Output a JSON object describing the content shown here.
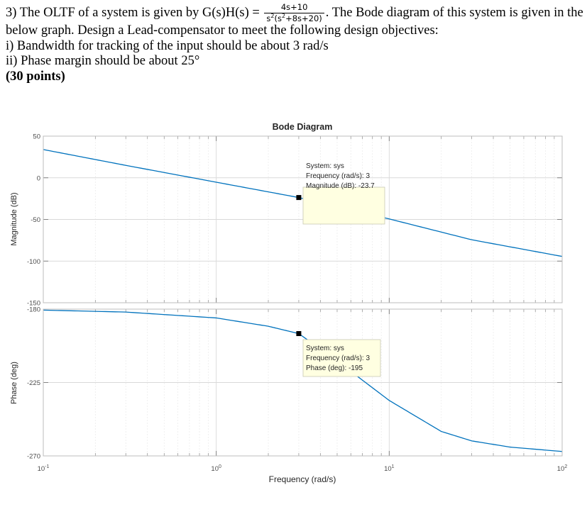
{
  "problem": {
    "lead": "3) The OLTF of a system is given by G(s)H(s) =",
    "tf_num": "4s+10",
    "tf_den_s": "s",
    "tf_den_exp": "2",
    "tf_den_open": "(s",
    "tf_den_rest": "+8s+20)",
    "after_tf": ". The Bode diagram of this system is given in the",
    "line2": "below graph. Design a Lead-compensator to meet the following design objectives:",
    "line3": "i) Bandwidth for tracking of the input should be about 3 rad/s",
    "line4": "ii) Phase margin should be about 25°",
    "points": "(30 points)"
  },
  "chart_data": {
    "type": "line",
    "title": "Bode Diagram",
    "xlabel": "Frequency (rad/s)",
    "xscale": "log",
    "xlim": [
      0.1,
      100
    ],
    "x_ticks": [
      {
        "base": "10",
        "exp": "-1",
        "value": 0.1
      },
      {
        "base": "10",
        "exp": "0",
        "value": 1
      },
      {
        "base": "10",
        "exp": "1",
        "value": 10
      },
      {
        "base": "10",
        "exp": "2",
        "value": 100
      }
    ],
    "grid": true,
    "color": "#0072bd",
    "magnitude": {
      "ylabel": "Magnitude (dB)",
      "ylim": [
        -150,
        50
      ],
      "y_ticks": [
        "50",
        "0",
        "-50",
        "-100",
        "-150"
      ],
      "y_tick_values": [
        50,
        0,
        -50,
        -100,
        -150
      ],
      "frequency": [
        0.1,
        0.3,
        1,
        3,
        10,
        30,
        100
      ],
      "values": [
        33.9,
        14.9,
        -5.3,
        -23.7,
        -49.4,
        -74.4,
        -94.4
      ],
      "datatip": {
        "frequency": 3,
        "value": -23.7,
        "lines": [
          "System: sys",
          "Frequency (rad/s): 3",
          "Magnitude (dB): -23.7"
        ]
      }
    },
    "phase": {
      "ylabel": "Phase (deg)",
      "ylim": [
        -270,
        -180
      ],
      "y_ticks": [
        "-180",
        "-225",
        "-270"
      ],
      "y_tick_values": [
        -180,
        -225,
        -270
      ],
      "frequency": [
        0.1,
        0.3,
        1,
        2,
        3,
        5,
        10,
        20,
        30,
        50,
        100
      ],
      "values": [
        -180.6,
        -181.8,
        -185.4,
        -190.5,
        -195.0,
        -211.8,
        -236.0,
        -255.0,
        -260.8,
        -264.6,
        -267.3
      ],
      "datatip": {
        "frequency": 3,
        "value": -195,
        "lines": [
          "System: sys",
          "Frequency (rad/s): 3",
          "Phase (deg): -195"
        ]
      }
    }
  }
}
